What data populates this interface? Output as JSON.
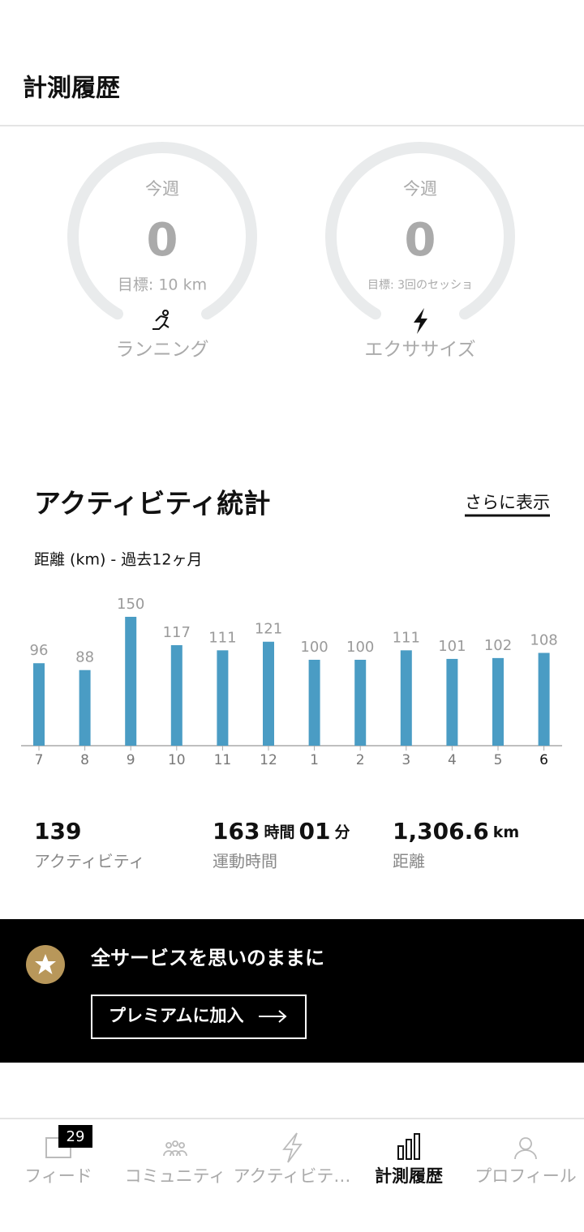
{
  "header": {
    "title": "計測履歴"
  },
  "goals": [
    {
      "period": "今週",
      "value": "0",
      "target": "目標: 10 km",
      "label": "ランニング"
    },
    {
      "period": "今週",
      "value": "0",
      "target": "目標: 3回のセッショ",
      "label": "エクササイズ"
    }
  ],
  "stats_section": {
    "title": "アクティビティ統計",
    "more": "さらに表示"
  },
  "chart_data": {
    "type": "bar",
    "subtitle": "距離 (km) - 過去12ヶ月",
    "categories": [
      "7",
      "8",
      "9",
      "10",
      "11",
      "12",
      "1",
      "2",
      "3",
      "4",
      "5",
      "6"
    ],
    "values": [
      96,
      88,
      150,
      117,
      111,
      121,
      100,
      100,
      111,
      101,
      102,
      108
    ],
    "color": "#4a9cc4"
  },
  "summary": [
    {
      "value": "139",
      "label": "アクティビティ"
    },
    {
      "value": "163",
      "unit": "時間",
      "value2": "01",
      "unit2": "分",
      "label": "運動時間"
    },
    {
      "value": "1,306.6",
      "unit": "km",
      "label": "距離"
    }
  ],
  "banner": {
    "title": "全サービスを思いのままに",
    "button": "プレミアムに加入"
  },
  "nav": {
    "badge": "29",
    "active": 3,
    "items": [
      "フィード",
      "コミュニティ",
      "アクティビテ…",
      "計測履歴",
      "プロフィール"
    ]
  }
}
